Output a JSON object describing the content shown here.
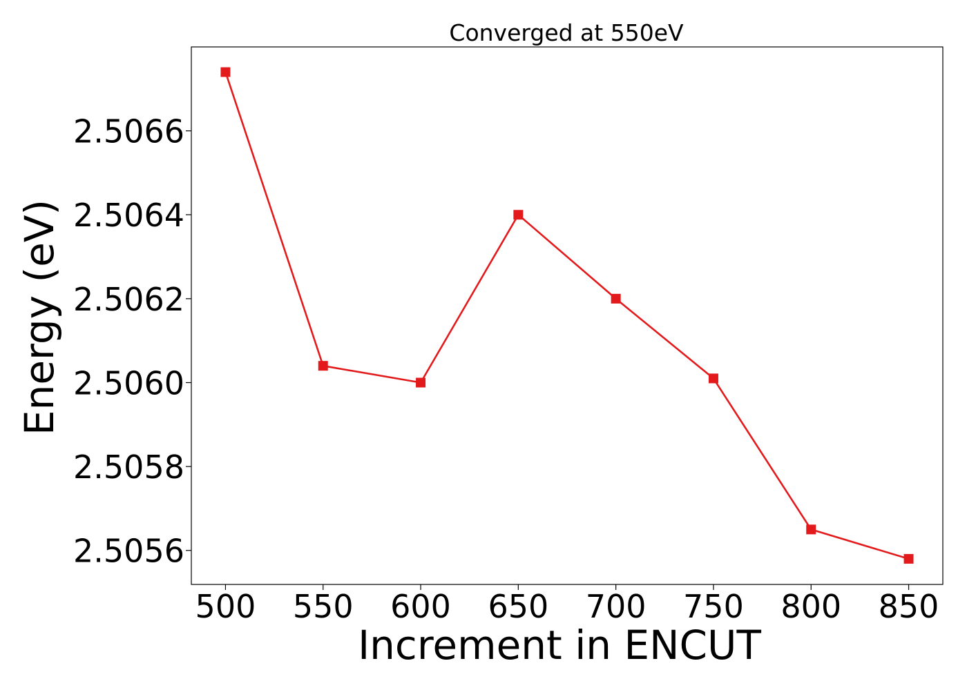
{
  "chart_data": {
    "type": "line",
    "title": "Converged at 550eV",
    "xlabel": "Increment in ENCUT",
    "ylabel": "Energy (eV)",
    "x": [
      500,
      550,
      600,
      650,
      700,
      750,
      800,
      850
    ],
    "series": [
      {
        "values": [
          2.50674,
          2.50604,
          2.506,
          2.5064,
          2.5062,
          2.50601,
          2.50565,
          2.50558
        ],
        "color": "#e31a1c",
        "marker": "square"
      }
    ],
    "xticks": [
      500,
      550,
      600,
      650,
      700,
      750,
      800,
      850
    ],
    "xtick_labels": [
      "500",
      "550",
      "600",
      "650",
      "700",
      "750",
      "800",
      "850"
    ],
    "yticks": [
      2.5056,
      2.5058,
      2.506,
      2.5062,
      2.5064,
      2.5066
    ],
    "ytick_labels": [
      "2.5056",
      "2.5058",
      "2.5060",
      "2.5062",
      "2.5064",
      "2.5066"
    ],
    "xlim": [
      482.5,
      867.5
    ],
    "ylim": [
      2.505519,
      2.5068
    ],
    "grid": false,
    "legend": "none"
  }
}
